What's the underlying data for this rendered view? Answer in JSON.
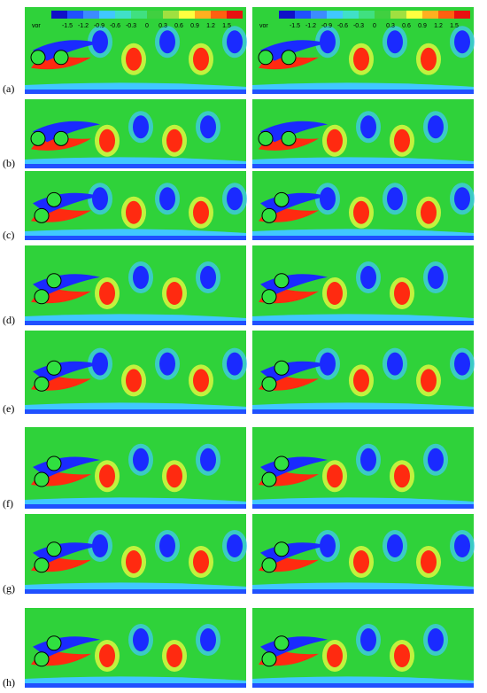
{
  "figure": {
    "rows": [
      {
        "label": "(a)"
      },
      {
        "label": "(b)"
      },
      {
        "label": "(c)"
      },
      {
        "label": "(d)"
      },
      {
        "label": "(e)"
      },
      {
        "label": "(f)"
      },
      {
        "label": "(g)"
      },
      {
        "label": "(h)"
      }
    ],
    "colorbars": [
      {
        "title": "vor",
        "ticks": [
          -1.5,
          -1.2,
          -0.9,
          -0.6,
          -0.3,
          0,
          0.3,
          0.6,
          0.9,
          1.2,
          1.5
        ]
      },
      {
        "title": "vor",
        "ticks": [
          -1.5,
          -1.2,
          -0.9,
          -0.6,
          -0.3,
          0,
          0.3,
          0.6,
          0.9,
          1.2,
          1.5
        ]
      }
    ]
  }
}
